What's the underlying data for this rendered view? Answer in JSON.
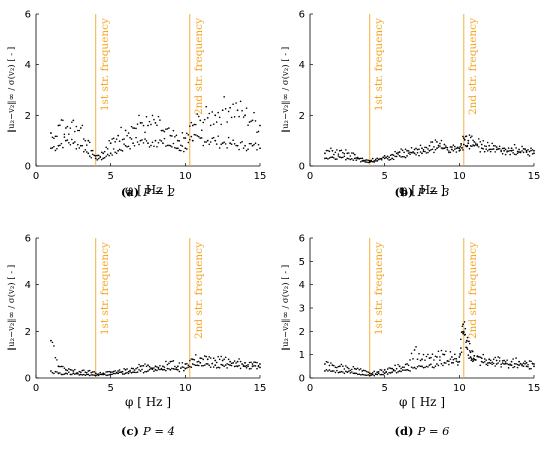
{
  "figure": {
    "annotation_color": "#F5A623",
    "marker_color": "#000000",
    "ylabel": "‖u₂−v₂‖∞ / σ(v₂)   [ - ]",
    "xlabel": "φ [ Hz ]",
    "annotations": [
      {
        "x": 4.0,
        "text": "1st str. frequency"
      },
      {
        "x": 10.3,
        "text": "2nd str. frequency"
      }
    ]
  },
  "chart_data": [
    {
      "type": "scatter",
      "caption_tag": "(a)",
      "caption_text": "P = 2",
      "xlim": [
        0,
        15
      ],
      "ylim": [
        0,
        6
      ],
      "xticks": [
        "0",
        "5",
        "10",
        "15"
      ],
      "yticks": [
        "0",
        "2",
        "4",
        "6"
      ],
      "series": [
        {
          "x": [
            1.0,
            1.5,
            2.0,
            2.5,
            3.0,
            3.5,
            4.0,
            4.5,
            5.0,
            5.5,
            6.0,
            6.5,
            7.0,
            7.5,
            8.0,
            8.5,
            9.0,
            9.5,
            10.0,
            10.5,
            11.0,
            11.5,
            12.0,
            12.5,
            13.0,
            13.5,
            14.0,
            14.5,
            15.0
          ],
          "y": [
            0.7,
            0.8,
            1.0,
            0.9,
            0.8,
            0.5,
            0.3,
            0.3,
            0.5,
            0.6,
            0.8,
            0.9,
            1.0,
            0.9,
            1.0,
            0.9,
            0.8,
            0.7,
            0.7,
            1.0,
            1.1,
            1.0,
            1.0,
            0.9,
            0.9,
            0.8,
            0.8,
            0.8,
            0.7
          ]
        },
        {
          "x": [
            1.0,
            1.5,
            2.0,
            2.5,
            3.0,
            3.5,
            4.0,
            4.5,
            5.0,
            5.5,
            6.0,
            6.5,
            7.0,
            7.5,
            8.0,
            8.5,
            9.0,
            9.5,
            10.0,
            10.5,
            11.0,
            11.5,
            12.0,
            12.5,
            13.0,
            13.5,
            14.0,
            14.5,
            15.0
          ],
          "y": [
            1.3,
            1.6,
            1.5,
            1.8,
            1.5,
            1.0,
            0.4,
            0.5,
            0.9,
            1.2,
            1.4,
            1.5,
            1.7,
            1.6,
            1.7,
            1.4,
            1.2,
            1.0,
            1.1,
            1.6,
            1.8,
            1.9,
            2.0,
            2.2,
            2.3,
            2.2,
            2.0,
            1.8,
            1.6
          ]
        }
      ]
    },
    {
      "type": "scatter",
      "caption_tag": "(b)",
      "caption_text": "P = 3",
      "xlim": [
        0,
        15
      ],
      "ylim": [
        0,
        6
      ],
      "xticks": [
        "0",
        "5",
        "10",
        "15"
      ],
      "yticks": [
        "0",
        "2",
        "4",
        "6"
      ],
      "series": [
        {
          "x": [
            1.0,
            1.5,
            2.0,
            2.5,
            3.0,
            3.5,
            4.0,
            4.5,
            5.0,
            5.5,
            6.0,
            6.5,
            7.0,
            7.5,
            8.0,
            8.5,
            9.0,
            9.5,
            10.0,
            10.3,
            10.6,
            11.0,
            11.5,
            12.0,
            12.5,
            13.0,
            13.5,
            14.0,
            14.5,
            15.0
          ],
          "y": [
            0.3,
            0.35,
            0.35,
            0.3,
            0.3,
            0.2,
            0.15,
            0.2,
            0.3,
            0.3,
            0.4,
            0.4,
            0.5,
            0.5,
            0.6,
            0.7,
            0.7,
            0.65,
            0.6,
            0.85,
            0.9,
            0.8,
            0.7,
            0.65,
            0.65,
            0.6,
            0.6,
            0.55,
            0.55,
            0.5
          ]
        },
        {
          "x": [
            1.0,
            1.5,
            2.0,
            2.5,
            3.0,
            3.5,
            4.0,
            4.5,
            5.0,
            5.5,
            6.0,
            6.5,
            7.0,
            7.5,
            8.0,
            8.5,
            9.0,
            9.5,
            10.0,
            10.3,
            10.6,
            11.0,
            11.5,
            12.0,
            12.5,
            13.0,
            13.5,
            14.0,
            14.5,
            15.0
          ],
          "y": [
            0.5,
            0.6,
            0.6,
            0.5,
            0.45,
            0.3,
            0.2,
            0.3,
            0.4,
            0.45,
            0.55,
            0.6,
            0.65,
            0.7,
            0.8,
            0.95,
            0.85,
            0.75,
            0.7,
            1.1,
            1.0,
            0.95,
            0.85,
            0.8,
            0.75,
            0.7,
            0.7,
            0.65,
            0.6,
            0.6
          ]
        }
      ]
    },
    {
      "type": "scatter",
      "caption_tag": "(c)",
      "caption_text": "P = 4",
      "xlim": [
        0,
        15
      ],
      "ylim": [
        0,
        6
      ],
      "xticks": [
        "0",
        "5",
        "10",
        "15"
      ],
      "yticks": [
        "0",
        "2",
        "4",
        "6"
      ],
      "series": [
        {
          "x": [
            1.0,
            1.5,
            2.0,
            2.5,
            3.0,
            3.5,
            4.0,
            4.5,
            5.0,
            5.5,
            6.0,
            6.5,
            7.0,
            7.5,
            8.0,
            8.5,
            9.0,
            9.5,
            10.0,
            10.5,
            11.0,
            11.5,
            12.0,
            12.5,
            13.0,
            13.5,
            14.0,
            14.5,
            15.0
          ],
          "y": [
            0.3,
            0.2,
            0.2,
            0.2,
            0.15,
            0.15,
            0.1,
            0.15,
            0.15,
            0.2,
            0.2,
            0.25,
            0.3,
            0.3,
            0.35,
            0.35,
            0.35,
            0.35,
            0.4,
            0.6,
            0.65,
            0.6,
            0.55,
            0.55,
            0.55,
            0.5,
            0.5,
            0.5,
            0.45
          ]
        },
        {
          "x": [
            1.0,
            1.5,
            2.0,
            2.5,
            3.0,
            3.5,
            4.0,
            4.5,
            5.0,
            5.5,
            6.0,
            6.5,
            7.0,
            7.5,
            8.0,
            8.5,
            9.0,
            9.5,
            10.0,
            10.5,
            11.0,
            11.5,
            12.0,
            12.5,
            13.0,
            13.5,
            14.0,
            14.5,
            15.0
          ],
          "y": [
            1.6,
            0.5,
            0.35,
            0.3,
            0.25,
            0.3,
            0.2,
            0.2,
            0.25,
            0.3,
            0.35,
            0.4,
            0.5,
            0.55,
            0.5,
            0.5,
            0.7,
            0.5,
            0.6,
            0.8,
            0.85,
            0.8,
            0.75,
            0.75,
            0.7,
            0.7,
            0.65,
            0.6,
            0.6
          ]
        }
      ]
    },
    {
      "type": "scatter",
      "caption_tag": "(d)",
      "caption_text": "P = 6",
      "xlim": [
        0,
        15
      ],
      "ylim": [
        0,
        6
      ],
      "xticks": [
        "0",
        "5",
        "10",
        "15"
      ],
      "yticks": [
        "0",
        "1",
        "2",
        "3",
        "4",
        "5",
        "6"
      ],
      "series": [
        {
          "x": [
            1.0,
            1.5,
            2.0,
            2.5,
            3.0,
            3.5,
            4.0,
            4.5,
            5.0,
            5.5,
            6.0,
            6.5,
            7.0,
            7.5,
            8.0,
            8.5,
            9.0,
            9.5,
            10.0,
            10.25,
            10.5,
            10.75,
            11.0,
            11.5,
            12.0,
            12.5,
            13.0,
            13.5,
            14.0,
            14.5,
            15.0
          ],
          "y": [
            0.3,
            0.3,
            0.25,
            0.25,
            0.2,
            0.15,
            0.1,
            0.15,
            0.2,
            0.25,
            0.3,
            0.35,
            0.45,
            0.5,
            0.55,
            0.6,
            0.65,
            0.65,
            0.7,
            1.9,
            1.3,
            0.9,
            0.8,
            0.7,
            0.65,
            0.6,
            0.6,
            0.55,
            0.55,
            0.5,
            0.5
          ]
        },
        {
          "x": [
            1.0,
            1.5,
            2.0,
            2.5,
            3.0,
            3.5,
            4.0,
            4.5,
            5.0,
            5.5,
            6.0,
            6.5,
            7.0,
            7.5,
            8.0,
            8.5,
            9.0,
            9.5,
            10.0,
            10.25,
            10.5,
            10.75,
            11.0,
            11.5,
            12.0,
            12.5,
            13.0,
            13.5,
            14.0,
            14.5,
            15.0
          ],
          "y": [
            0.6,
            0.55,
            0.5,
            0.45,
            0.4,
            0.3,
            0.2,
            0.25,
            0.35,
            0.4,
            0.5,
            0.6,
            1.2,
            0.8,
            0.85,
            0.9,
            1.0,
            0.9,
            0.9,
            2.3,
            1.6,
            1.1,
            0.95,
            0.85,
            0.8,
            0.75,
            0.75,
            0.7,
            0.7,
            0.65,
            0.6
          ]
        }
      ]
    }
  ]
}
